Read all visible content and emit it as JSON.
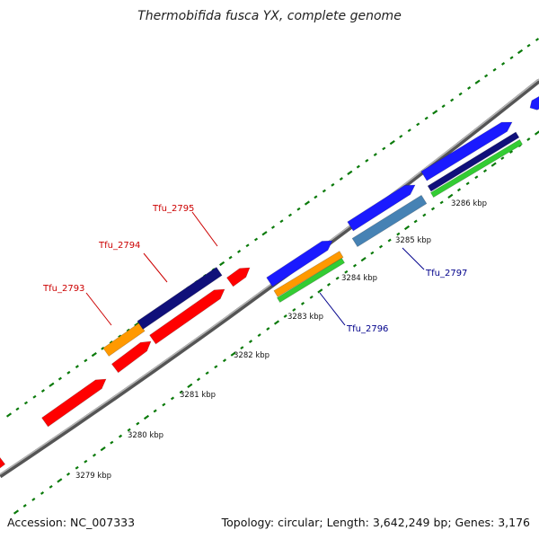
{
  "title": "Thermobifida fusca YX, complete genome",
  "footer": {
    "accession": "Accession: NC_007333",
    "summary": "Topology: circular; Length: 3,642,249 bp; Genes: 3,176"
  },
  "colors": {
    "backbone": "#888888",
    "forward_cds": "#1a1aff",
    "reverse_cds": "#ff0000",
    "tick": "#0a7a0a",
    "label_forward": "#00008b",
    "label_reverse": "#cc0000",
    "dark_navy": "#10107a",
    "orange": "#ff9900",
    "green": "#33cc33",
    "steelblue": "#4682b4"
  },
  "scale_labels": [
    "3279 kbp",
    "3280 kbp",
    "3281 kbp",
    "3282 kbp",
    "3283 kbp",
    "3284 kbp",
    "3285 kbp",
    "3286 kbp"
  ],
  "gene_labels": [
    {
      "name": "Tfu_2793",
      "strand": "reverse"
    },
    {
      "name": "Tfu_2794",
      "strand": "reverse"
    },
    {
      "name": "Tfu_2795",
      "strand": "reverse"
    },
    {
      "name": "Tfu_2796",
      "strand": "forward"
    },
    {
      "name": "Tfu_2797",
      "strand": "forward"
    }
  ]
}
